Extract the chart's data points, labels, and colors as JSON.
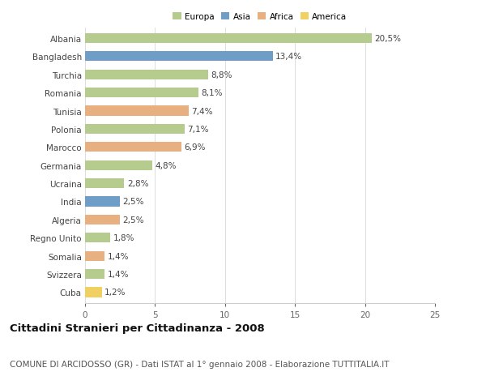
{
  "countries": [
    "Albania",
    "Bangladesh",
    "Turchia",
    "Romania",
    "Tunisia",
    "Polonia",
    "Marocco",
    "Germania",
    "Ucraina",
    "India",
    "Algeria",
    "Regno Unito",
    "Somalia",
    "Svizzera",
    "Cuba"
  ],
  "values": [
    20.5,
    13.4,
    8.8,
    8.1,
    7.4,
    7.1,
    6.9,
    4.8,
    2.8,
    2.5,
    2.5,
    1.8,
    1.4,
    1.4,
    1.2
  ],
  "labels": [
    "20,5%",
    "13,4%",
    "8,8%",
    "8,1%",
    "7,4%",
    "7,1%",
    "6,9%",
    "4,8%",
    "2,8%",
    "2,5%",
    "2,5%",
    "1,8%",
    "1,4%",
    "1,4%",
    "1,2%"
  ],
  "continent": [
    "Europa",
    "Asia",
    "Europa",
    "Europa",
    "Africa",
    "Europa",
    "Africa",
    "Europa",
    "Europa",
    "Asia",
    "Africa",
    "Europa",
    "Africa",
    "Europa",
    "America"
  ],
  "colors": {
    "Europa": "#b5cc8e",
    "Asia": "#6e9ec8",
    "Africa": "#e8b080",
    "America": "#f0d060"
  },
  "legend_labels": [
    "Europa",
    "Asia",
    "Africa",
    "America"
  ],
  "legend_colors": [
    "#b5cc8e",
    "#6e9ec8",
    "#e8b080",
    "#f0d060"
  ],
  "xlim": [
    0,
    25
  ],
  "xticks": [
    0,
    5,
    10,
    15,
    20,
    25
  ],
  "title": "Cittadini Stranieri per Cittadinanza - 2008",
  "subtitle": "COMUNE DI ARCIDOSSO (GR) - Dati ISTAT al 1° gennaio 2008 - Elaborazione TUTTITALIA.IT",
  "bg_color": "#ffffff",
  "bar_height": 0.55,
  "label_fontsize": 7.5,
  "tick_fontsize": 7.5,
  "title_fontsize": 9.5,
  "subtitle_fontsize": 7.5
}
